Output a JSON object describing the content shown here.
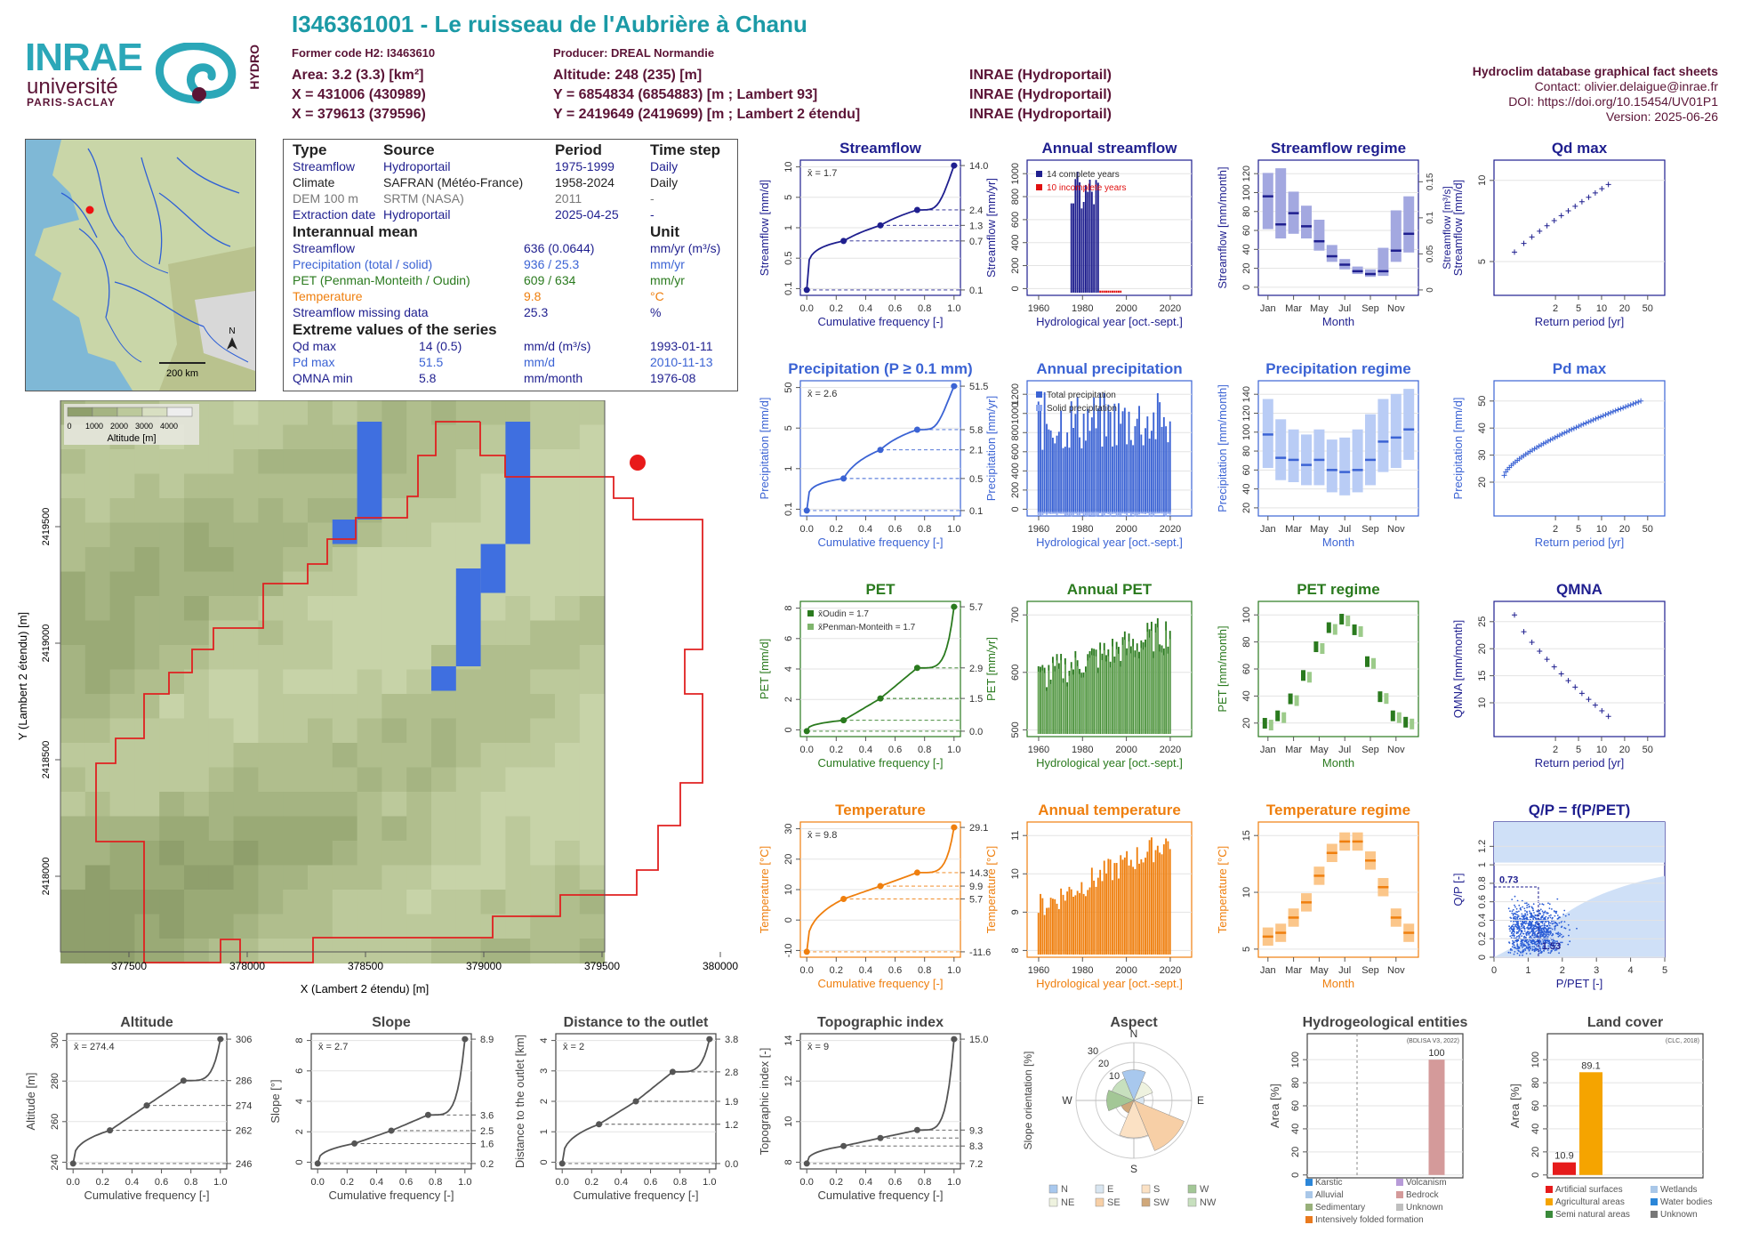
{
  "header": {
    "title": "I346361001 - Le ruisseau de l'Aubrière à Chanu",
    "former_code": "Former code H2: I3463610",
    "producer": "Producer: DREAL Normandie",
    "area": "Area: 3.2 (3.3) [km²]",
    "altitude": "Altitude: 248 (235) [m]",
    "x93": "X = 431006 (430989)",
    "y93": "Y = 6854834 (6854883) [m ; Lambert 93]",
    "x2e": "X = 379613 (379596)",
    "y2e": "Y = 2419649 (2419699) [m ; Lambert 2 étendu]",
    "src1": "INRAE (Hydroportail)",
    "src2": "INRAE (Hydroportail)",
    "src3": "INRAE (Hydroportail)",
    "right1": "Hydroclim database graphical fact sheets",
    "right2": "Contact: olivier.delaigue@inrae.fr",
    "right3": "DOI: https://doi.org/10.15454/UV01P1",
    "right4": "Version: 2025-06-26"
  },
  "logo": {
    "inrae": "INRAE",
    "univ": "université",
    "ps": "PARIS-SACLAY",
    "hydro": "HYDRO"
  },
  "colors": {
    "teal": "#1b9aa6",
    "maroon": "#5b1436",
    "flow": "#1f1f8f",
    "precip": "#3b63d4",
    "pet": "#2a7a1e",
    "temp": "#ef7f0e"
  },
  "location_map": {
    "scale": "200 km",
    "north": "N"
  },
  "info": {
    "h_type": "Type",
    "h_source": "Source",
    "h_period": "Period",
    "h_step": "Time step",
    "rows": [
      {
        "type": "Streamflow",
        "source": "Hydroportail",
        "period": "1975-1999",
        "step": "Daily"
      },
      {
        "type": "Climate",
        "source": "SAFRAN (Météo-France)",
        "period": "1958-2024",
        "step": "Daily"
      },
      {
        "type": "DEM 100 m",
        "source": "SRTM (NASA)",
        "period": "2011",
        "step": "-"
      },
      {
        "type": "Extraction date",
        "source": "Hydroportail",
        "period": "2025-04-25",
        "step": "-"
      }
    ],
    "h_inter": "Interannual mean",
    "h_unit": "Unit",
    "means": [
      {
        "name": "Streamflow",
        "value": "636 (0.0644)",
        "unit": "mm/yr (m³/s)"
      },
      {
        "name": "Precipitation (total / solid)",
        "value": "936 / 25.3",
        "unit": "mm/yr"
      },
      {
        "name": "PET (Penman-Monteith / Oudin)",
        "value": "609 / 634",
        "unit": "mm/yr"
      },
      {
        "name": "Temperature",
        "value": "9.8",
        "unit": "°C"
      },
      {
        "name": "Streamflow missing data",
        "value": "25.3",
        "unit": "%"
      }
    ],
    "h_extreme": "Extreme values of the series",
    "extremes": [
      {
        "name": "Qd max",
        "value": "14 (0.5)",
        "unit": "mm/d (m³/s)",
        "date": "1993-01-11"
      },
      {
        "name": "Pd max",
        "value": "51.5",
        "unit": "mm/d",
        "date": "2010-11-13"
      },
      {
        "name": "QMNA min",
        "value": "5.8",
        "unit": "mm/month",
        "date": "1976-08"
      }
    ]
  },
  "dem_map": {
    "legend_ticks": [
      "0",
      "1000",
      "2000",
      "3000",
      "4000"
    ],
    "legend_label": "Altitude [m]",
    "xticks": [
      "377500",
      "378000",
      "378500",
      "379000",
      "379500",
      "380000"
    ],
    "yticks": [
      "2418000",
      "2418500",
      "2419000",
      "2419500"
    ],
    "xlabel": "X (Lambert 2 étendu) [m]",
    "ylabel": "Y (Lambert 2 étendu) [m]"
  },
  "chart_data": [
    {
      "id": "streamflow_fdc",
      "type": "line",
      "title": "Streamflow",
      "xlabel": "Cumulative frequency [-]",
      "ylabel": "Streamflow [mm/d]",
      "mean_label": "x̄ = 1.7",
      "x": [
        0,
        0.25,
        0.5,
        0.75,
        1
      ],
      "y": [
        0.1,
        0.7,
        1.3,
        2.4,
        14.0
      ],
      "right_ticks": [
        "14.0",
        "2.4",
        "1.3",
        "0.7",
        "0.1"
      ],
      "left_ticks": [
        "0.1",
        "0.5",
        "1",
        "5",
        "10"
      ],
      "log": true,
      "color": "#1f1f8f"
    },
    {
      "id": "annual_streamflow",
      "type": "bar",
      "title": "Annual streamflow",
      "xlabel": "Hydrological year [oct.-sept.]",
      "ylabel": "Streamflow [mm/yr]",
      "legend": [
        "14 complete years",
        "10 incomplete years"
      ],
      "xticks": [
        "1960",
        "1980",
        "2000",
        "2020"
      ],
      "yticks": [
        "0",
        "200",
        "400",
        "600",
        "800",
        "1000"
      ],
      "color": "#1f1f8f"
    },
    {
      "id": "streamflow_regime",
      "type": "bar",
      "title": "Streamflow regime",
      "xlabel": "Month",
      "ylabel": "Streamflow [mm/month]",
      "ylabel2": "Streamflow [m³/s]",
      "months": [
        "Jan",
        "Mar",
        "May",
        "Jul",
        "Sep",
        "Nov"
      ],
      "yticks": [
        "0",
        "20",
        "40",
        "60",
        "80",
        "100",
        "120"
      ],
      "y2ticks": [
        "0",
        "0.05",
        "0.1",
        "0.15"
      ],
      "values": [
        100,
        70,
        82,
        68,
        52,
        36,
        27,
        20,
        17,
        20,
        42,
        60
      ],
      "low": [
        65,
        55,
        60,
        55,
        42,
        30,
        22,
        17,
        14,
        15,
        30,
        40
      ],
      "high": [
        125,
        130,
        105,
        90,
        75,
        48,
        33,
        25,
        22,
        45,
        85,
        100
      ],
      "color": "#1f1f8f"
    },
    {
      "id": "qd_max",
      "type": "scatter",
      "title": "Qd max",
      "xlabel": "Return period [yr]",
      "ylabel": "Streamflow [mm/d]",
      "xticks": [
        "2",
        "5",
        "10",
        "20",
        "50"
      ],
      "yticks": [
        "5",
        "10"
      ],
      "color": "#1f1f8f"
    },
    {
      "id": "precip_fdc",
      "type": "line",
      "title": "Precipitation (P ≥ 0.1 mm)",
      "xlabel": "Cumulative frequency [-]",
      "ylabel": "Precipitation [mm/d]",
      "mean_label": "x̄ = 2.6",
      "x": [
        0,
        0.25,
        0.5,
        0.75,
        1
      ],
      "y": [
        0.1,
        0.5,
        2.1,
        5.8,
        51.5
      ],
      "right_ticks": [
        "51.5",
        "5.8",
        "2.1",
        "0.5",
        "0.1"
      ],
      "left_ticks": [
        "0.1",
        "1",
        "5",
        "50"
      ],
      "log": true,
      "color": "#3b63d4"
    },
    {
      "id": "annual_precip",
      "type": "bar",
      "title": "Annual precipitation",
      "xlabel": "Hydrological year [oct.-sept.]",
      "ylabel": "Precipitation [mm/yr]",
      "legend": [
        "Total precipitation",
        "Solid precipitation"
      ],
      "xticks": [
        "1960",
        "1980",
        "2000",
        "2020"
      ],
      "yticks": [
        "0",
        "200",
        "400",
        "600",
        "800",
        "1000",
        "1200"
      ],
      "color": "#3b63d4"
    },
    {
      "id": "precip_regime",
      "type": "bar",
      "title": "Precipitation regime",
      "xlabel": "Month",
      "ylabel": "Precipitation [mm/month]",
      "months": [
        "Jan",
        "Mar",
        "May",
        "Jul",
        "Sep",
        "Nov"
      ],
      "yticks": [
        "20",
        "40",
        "60",
        "80",
        "100",
        "120",
        "140"
      ],
      "values": [
        95,
        72,
        70,
        65,
        70,
        60,
        58,
        60,
        70,
        88,
        92,
        100
      ],
      "low": [
        62,
        50,
        48,
        45,
        45,
        38,
        35,
        38,
        45,
        58,
        62,
        70
      ],
      "high": [
        130,
        110,
        100,
        95,
        100,
        90,
        92,
        100,
        115,
        130,
        135,
        140
      ],
      "color": "#3b63d4"
    },
    {
      "id": "pd_max",
      "type": "scatter",
      "title": "Pd max",
      "xlabel": "Return period [yr]",
      "ylabel": "Precipitation [mm/d]",
      "xticks": [
        "2",
        "5",
        "10",
        "20",
        "50"
      ],
      "yticks": [
        "20",
        "30",
        "40",
        "50"
      ],
      "color": "#3b63d4"
    },
    {
      "id": "pet_fdc",
      "type": "line",
      "title": "PET",
      "xlabel": "Cumulative frequency [-]",
      "ylabel": "PET [mm/d]",
      "mean_labels": [
        "x̄Oudin = 1.7",
        "x̄Penman-Monteith = 1.7"
      ],
      "x": [
        0,
        0.25,
        0.5,
        0.75,
        1
      ],
      "y": [
        0.0,
        0.5,
        1.5,
        2.9,
        5.7
      ],
      "right_ticks": [
        "5.7",
        "2.9",
        "1.5",
        "0.0"
      ],
      "left_ticks": [
        "0",
        "2",
        "4",
        "6",
        "8"
      ],
      "color": "#2a7a1e"
    },
    {
      "id": "annual_pet",
      "type": "bar",
      "title": "Annual PET",
      "xlabel": "Hydrological year [oct.-sept.]",
      "ylabel": "PET [mm/yr]",
      "xticks": [
        "1960",
        "1980",
        "2000",
        "2020"
      ],
      "yticks": [
        "500",
        "600",
        "700"
      ],
      "color": "#2a7a1e"
    },
    {
      "id": "pet_regime",
      "type": "scatter",
      "title": "PET regime",
      "xlabel": "Month",
      "ylabel": "PET [mm/month]",
      "months": [
        "Jan",
        "Mar",
        "May",
        "Jul",
        "Sep",
        "Nov"
      ],
      "yticks": [
        "20",
        "40",
        "60",
        "80",
        "100"
      ],
      "values": [
        10,
        17,
        33,
        55,
        82,
        100,
        108,
        98,
        68,
        35,
        17,
        11
      ],
      "color": "#2a7a1e"
    },
    {
      "id": "qmna",
      "type": "scatter",
      "title": "QMNA",
      "xlabel": "Return period [yr]",
      "ylabel": "QMNA [mm/month]",
      "xticks": [
        "2",
        "5",
        "10",
        "20",
        "50"
      ],
      "yticks": [
        "10",
        "15",
        "20",
        "25"
      ],
      "color": "#1f1f8f"
    },
    {
      "id": "temp_fdc",
      "type": "line",
      "title": "Temperature",
      "xlabel": "Cumulative frequency [-]",
      "ylabel": "Temperature [°C]",
      "mean_label": "x̄ = 9.8",
      "x": [
        0,
        0.25,
        0.5,
        0.75,
        1
      ],
      "y": [
        -11.6,
        5.7,
        9.9,
        14.3,
        29.1
      ],
      "right_ticks": [
        "29.1",
        "14.3",
        "9.9",
        "5.7",
        "-11.6"
      ],
      "left_ticks": [
        "-10",
        "0",
        "10",
        "20",
        "30"
      ],
      "color": "#ef7f0e"
    },
    {
      "id": "annual_temp",
      "type": "bar",
      "title": "Annual temperature",
      "xlabel": "Hydrological year [oct.-sept.]",
      "ylabel": "Temperature [°C]",
      "xticks": [
        "1960",
        "1980",
        "2000",
        "2020"
      ],
      "yticks": [
        "8",
        "9",
        "10",
        "11"
      ],
      "color": "#ef7f0e"
    },
    {
      "id": "temp_regime",
      "type": "bar",
      "title": "Temperature regime",
      "xlabel": "Month",
      "ylabel": "Temperature [°C]",
      "months": [
        "Jan",
        "Mar",
        "May",
        "Jul",
        "Sep",
        "Nov"
      ],
      "yticks": [
        "5",
        "10",
        "15"
      ],
      "values": [
        4,
        4.5,
        6.5,
        8.5,
        12,
        15,
        16.5,
        16.5,
        14,
        10.5,
        6.5,
        4.5
      ],
      "color": "#ef7f0e"
    },
    {
      "id": "qp_ppet",
      "type": "scatter",
      "title": "Q/P = f(P/PET)",
      "xlabel": "P/PET [-]",
      "ylabel": "Q/P [-]",
      "xticks": [
        "0",
        "1",
        "2",
        "3",
        "4",
        "5"
      ],
      "yticks": [
        "0",
        "0.2",
        "0.4",
        "0.6",
        "0.8",
        "1",
        "1.2"
      ],
      "annot": [
        "0.73",
        "1.53"
      ],
      "color": "#1f1f8f"
    },
    {
      "id": "altitude_fdc",
      "type": "line",
      "title": "Altitude",
      "xlabel": "Cumulative frequency [-]",
      "ylabel": "Altitude [m]",
      "mean_label": "x̄ = 274.4",
      "x": [
        0,
        0.25,
        0.5,
        0.75,
        1
      ],
      "y": [
        246,
        262,
        274,
        286,
        306
      ],
      "right_ticks": [
        "306",
        "286",
        "274",
        "262",
        "246"
      ],
      "left_ticks": [
        "240",
        "260",
        "280",
        "300"
      ],
      "color": "#555555"
    },
    {
      "id": "slope_fdc",
      "type": "line",
      "title": "Slope",
      "xlabel": "Cumulative frequency [-]",
      "ylabel": "Slope [°]",
      "mean_label": "x̄ = 2.7",
      "x": [
        0,
        0.25,
        0.5,
        0.75,
        1
      ],
      "y": [
        0.2,
        1.6,
        2.5,
        3.6,
        8.9
      ],
      "right_ticks": [
        "8.9",
        "3.6",
        "2.5",
        "1.6",
        "0.2"
      ],
      "left_ticks": [
        "0",
        "2",
        "4",
        "6",
        "8"
      ],
      "color": "#555555"
    },
    {
      "id": "distance_fdc",
      "type": "line",
      "title": "Distance to the outlet",
      "xlabel": "Cumulative frequency [-]",
      "ylabel": "Distance to the outlet [km]",
      "mean_label": "x̄ = 2",
      "x": [
        0,
        0.25,
        0.5,
        0.75,
        1
      ],
      "y": [
        0.0,
        1.2,
        1.9,
        2.8,
        3.8
      ],
      "right_ticks": [
        "3.8",
        "2.8",
        "1.9",
        "1.2",
        "0.0"
      ],
      "left_ticks": [
        "0",
        "1",
        "2",
        "3",
        "4"
      ],
      "color": "#555555"
    },
    {
      "id": "topo_fdc",
      "type": "line",
      "title": "Topographic index",
      "xlabel": "Cumulative frequency [-]",
      "ylabel": "Topographic index [-]",
      "mean_label": "x̄ = 9",
      "x": [
        0,
        0.25,
        0.5,
        0.75,
        1
      ],
      "y": [
        7.2,
        8.3,
        8.8,
        9.3,
        15.0
      ],
      "right_ticks": [
        "15.0",
        "9.3",
        "8.3",
        "7.2"
      ],
      "left_ticks": [
        "8",
        "10",
        "12",
        "14"
      ],
      "color": "#555555"
    },
    {
      "id": "aspect",
      "type": "pie",
      "title": "Aspect",
      "ylabel": "Slope orientation [%]",
      "directions": [
        "N",
        "E",
        "S",
        "W"
      ],
      "rings": [
        "10",
        "20",
        "30"
      ],
      "legend": [
        "N",
        "NE",
        "E",
        "SE",
        "S",
        "SW",
        "W",
        "NW"
      ],
      "values": [
        18,
        12,
        6,
        32,
        22,
        8,
        16,
        14
      ]
    },
    {
      "id": "hydrogeology",
      "type": "bar",
      "title": "Hydrogeological entities",
      "ylabel": "Area [%]",
      "note": "(BDLISA V3, 2022)",
      "yticks": [
        "0",
        "20",
        "40",
        "60",
        "80",
        "100"
      ],
      "values": [
        100
      ],
      "value_labels": [
        "100"
      ],
      "legend": [
        "Karstic",
        "Volcanism",
        "Alluvial",
        "Bedrock",
        "Sedimentary",
        "Unknown",
        "Intensively folded formation"
      ]
    },
    {
      "id": "land_cover",
      "type": "bar",
      "title": "Land cover",
      "ylabel": "Area [%]",
      "note": "(CLC, 2018)",
      "yticks": [
        "0",
        "20",
        "40",
        "60",
        "80",
        "100"
      ],
      "values": [
        10.9,
        89.1
      ],
      "value_labels": [
        "10.9",
        "89.1"
      ],
      "legend": [
        "Artificial surfaces",
        "Wetlands",
        "Agricultural areas",
        "Water bodies",
        "Semi natural areas",
        "Unknown"
      ]
    }
  ]
}
